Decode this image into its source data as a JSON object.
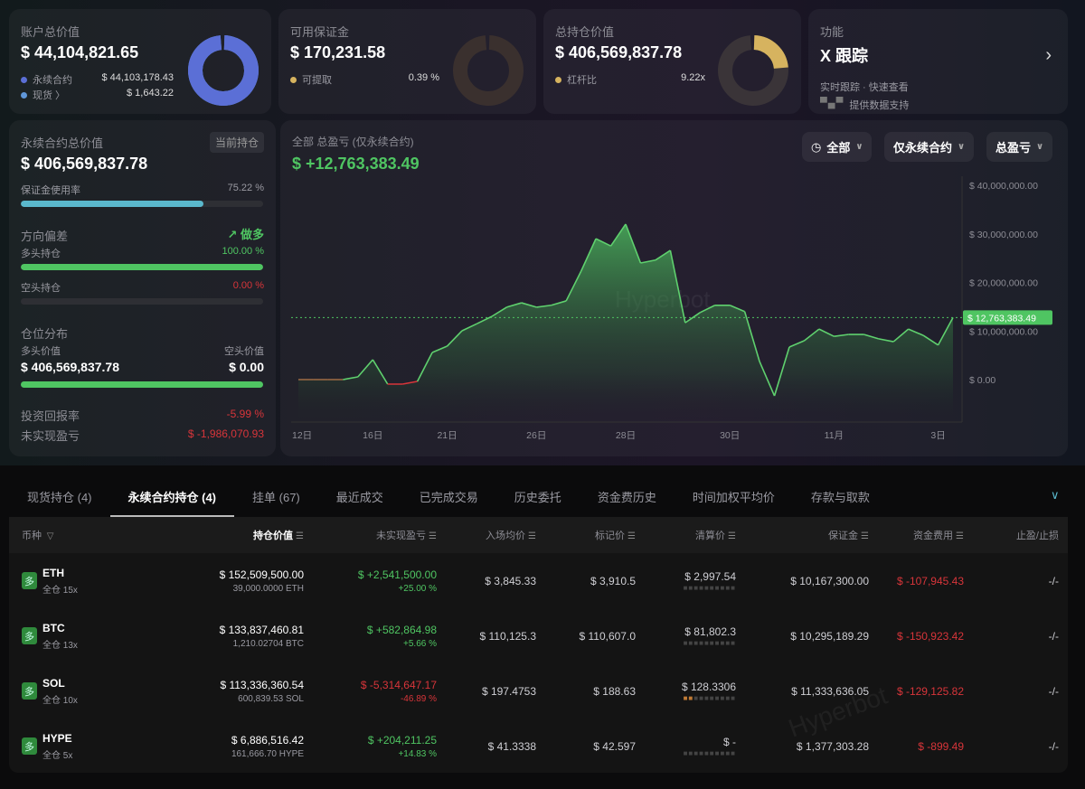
{
  "cards": [
    {
      "title": "账户总价值",
      "value": "$ 44,104,821.65",
      "items": [
        {
          "label": "永续合约",
          "value": "$ 44,103,178.43",
          "color": "#5b6fd6"
        },
        {
          "label": "现货 〉",
          "value": "$ 1,643.22",
          "color": "#5f97d9"
        }
      ],
      "donut": {
        "fill": 0.99996,
        "color": "#5b6fd6",
        "track": "#5f97d9"
      }
    },
    {
      "title": "可用保证金",
      "value": "$ 170,231.58",
      "items": [
        {
          "label": "可提取",
          "value": "0.39 %",
          "color": "#d6b35f"
        }
      ],
      "donut": {
        "fill": 0.0039,
        "color": "#d6b35f",
        "track": "#3a302e"
      }
    },
    {
      "title": "总持仓价值",
      "value": "$ 406,569,837.78",
      "items": [
        {
          "label": "杠杆比",
          "value": "9.22x",
          "color": "#d6b35f"
        }
      ],
      "donut": {
        "fill": 0.25,
        "color": "#d6b35f",
        "track": "#3a3438"
      }
    }
  ],
  "feature": {
    "title": "功能",
    "name": "X 跟踪",
    "desc": "实时跟踪 · 快速查看",
    "logo": "bbx",
    "support": "提供数据支持"
  },
  "left": {
    "title": "永续合约总价值",
    "tag": "当前持仓",
    "value": "$ 406,569,837.78",
    "margin_label": "保证金使用率",
    "margin_value": "75.22 %",
    "margin_fraction": 0.7522,
    "bias_label": "方向偏差",
    "bias_value": "做多",
    "long_label": "多头持仓",
    "long_value": "100.00 %",
    "long_fraction": 1.0,
    "short_label": "空头持仓",
    "short_value": "0.00 %",
    "short_fraction": 0,
    "dist_label": "仓位分布",
    "long_val_label": "多头价值",
    "short_val_label": "空头价值",
    "long_val": "$ 406,569,837.78",
    "short_val": "$ 0.00",
    "roi_label": "投资回报率",
    "roi_value": "-5.99 %",
    "upnl_label": "未实现盈亏",
    "upnl_value": "$ -1,986,070.93"
  },
  "chart": {
    "title": "全部 总盈亏 (仅永续合约)",
    "value": "$ +12,763,383.49",
    "filters": [
      "全部",
      "仅永续合约",
      "总盈亏"
    ],
    "watermark": "Hyperbot"
  },
  "chart_data": {
    "type": "area",
    "ylim": [
      -8.7,
      43
    ],
    "yunit": "M USD",
    "ytick_labels": [
      "$ 40,000,000.00",
      "$ 30,000,000.00",
      "$ 20,000,000.00",
      "$ 10,000,000.00",
      "$ 0.00"
    ],
    "yticks": [
      40,
      30,
      20,
      10,
      0
    ],
    "values": [
      0,
      0,
      0,
      0,
      0.56,
      4.1,
      -0.93,
      -0.93,
      -0.37,
      5.58,
      6.88,
      10.05,
      11.5,
      13.0,
      14.9,
      15.8,
      14.9,
      15.3,
      16.2,
      22.3,
      29.0,
      27.5,
      32.0,
      24.0,
      24.6,
      26.6,
      11.7,
      13.8,
      15.3,
      15.3,
      14.0,
      3.7,
      -3.35,
      6.7,
      8.0,
      10.4,
      8.9,
      9.3,
      9.3,
      8.4,
      7.8,
      10.4,
      9.1,
      7.1,
      12.76
    ],
    "xticks": [
      {
        "label": "12日",
        "index": 0
      },
      {
        "label": "16日",
        "index": 5
      },
      {
        "label": "21日",
        "index": 10
      },
      {
        "label": "26日",
        "index": 16
      },
      {
        "label": "28日",
        "index": 22
      },
      {
        "label": "30日",
        "index": 29
      },
      {
        "label": "11月",
        "index": 36
      },
      {
        "label": "3日",
        "index": 43
      }
    ],
    "current": {
      "value": 12.763,
      "label": "$ 12,763,383.49"
    },
    "colors": {
      "positive": "#5fd06e",
      "negative": "#d8353a",
      "flat": "#a06b45"
    },
    "grid": false
  },
  "tabs": [
    "现货持仓 (4)",
    "永续合约持仓 (4)",
    "挂单 (67)",
    "最近成交",
    "已完成交易",
    "历史委托",
    "资金费历史",
    "时间加权平均价",
    "存款与取款"
  ],
  "active_tab": 1,
  "columns": [
    "币种",
    "持仓价值",
    "未实现盈亏",
    "入场均价",
    "标记价",
    "清算价",
    "保证金",
    "资金费用",
    "止盈/止损"
  ],
  "rows": [
    {
      "side": "多",
      "coin": "ETH",
      "mode": "全仓 15x",
      "value": "$ 152,509,500.00",
      "size": "39,000.0000 ETH",
      "pnl": "$ +2,541,500.00",
      "pnl_pct": "+25.00 %",
      "pos": true,
      "entry": "$ 3,845.33",
      "mark": "$ 3,910.5",
      "liq": "$ 2,997.54",
      "risk": 0,
      "margin": "$ 10,167,300.00",
      "funding": "$ -107,945.43",
      "tpsl": "-/-"
    },
    {
      "side": "多",
      "coin": "BTC",
      "mode": "全仓 13x",
      "value": "$ 133,837,460.81",
      "size": "1,210.02704 BTC",
      "pnl": "$ +582,864.98",
      "pnl_pct": "+5.66 %",
      "pos": true,
      "entry": "$ 110,125.3",
      "mark": "$ 110,607.0",
      "liq": "$ 81,802.3",
      "risk": 0,
      "margin": "$ 10,295,189.29",
      "funding": "$ -150,923.42",
      "tpsl": "-/-"
    },
    {
      "side": "多",
      "coin": "SOL",
      "mode": "全仓 10x",
      "value": "$ 113,336,360.54",
      "size": "600,839.53 SOL",
      "pnl": "$ -5,314,647.17",
      "pnl_pct": "-46.89 %",
      "pos": false,
      "entry": "$ 197.4753",
      "mark": "$ 188.63",
      "liq": "$ 128.3306",
      "risk": 2,
      "margin": "$ 11,333,636.05",
      "funding": "$ -129,125.82",
      "tpsl": "-/-"
    },
    {
      "side": "多",
      "coin": "HYPE",
      "mode": "全仓 5x",
      "value": "$ 6,886,516.42",
      "size": "161,666.70 HYPE",
      "pnl": "$ +204,211.25",
      "pnl_pct": "+14.83 %",
      "pos": true,
      "entry": "$ 41.3338",
      "mark": "$ 42.597",
      "liq": "$ -",
      "risk": 0,
      "margin": "$ 1,377,303.28",
      "funding": "$ -899.49",
      "tpsl": "-/-"
    }
  ]
}
